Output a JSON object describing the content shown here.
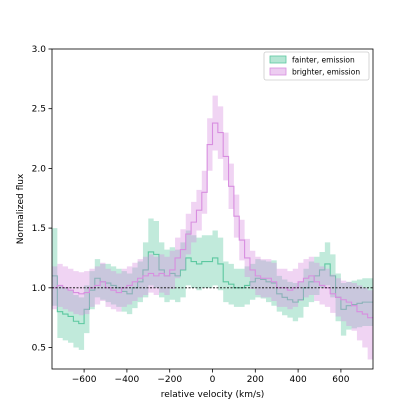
{
  "chart_data": {
    "type": "line",
    "title": "",
    "xlabel": "relative velocity (km/s)",
    "ylabel": "Normalized flux",
    "xlim": [
      -750,
      750
    ],
    "ylim": [
      0.32,
      3.0
    ],
    "xticks": [
      -600,
      -400,
      -200,
      0,
      200,
      400,
      600
    ],
    "xtick_labels": [
      "−600",
      "−400",
      "−200",
      "0",
      "200",
      "400",
      "600"
    ],
    "yticks": [
      0.5,
      1.0,
      1.5,
      2.0,
      2.5,
      3.0
    ],
    "ytick_labels": [
      "0.5",
      "1.0",
      "1.5",
      "2.0",
      "2.5",
      "3.0"
    ],
    "reference_line": 1.0,
    "grid": false,
    "legend_position": "top-right",
    "x": [
      -750,
      -725,
      -700,
      -675,
      -650,
      -625,
      -600,
      -575,
      -550,
      -525,
      -500,
      -475,
      -450,
      -425,
      -400,
      -375,
      -350,
      -325,
      -300,
      -275,
      -250,
      -225,
      -200,
      -175,
      -150,
      -125,
      -100,
      -75,
      -50,
      -25,
      0,
      25,
      50,
      75,
      100,
      125,
      150,
      175,
      200,
      225,
      250,
      275,
      300,
      325,
      350,
      375,
      400,
      425,
      450,
      475,
      500,
      525,
      550,
      575,
      600,
      625,
      650,
      675,
      700,
      725
    ],
    "series": [
      {
        "name": "fainter, emission",
        "color": "#5cc8a0",
        "values": [
          1.1,
          0.8,
          0.78,
          0.76,
          0.72,
          0.7,
          0.82,
          0.98,
          1.08,
          1.05,
          1.04,
          1.02,
          1.0,
          0.97,
          0.95,
          1.0,
          1.05,
          1.15,
          1.3,
          1.28,
          1.15,
          1.1,
          1.12,
          1.1,
          1.15,
          1.25,
          1.22,
          1.2,
          1.22,
          1.22,
          1.25,
          1.2,
          1.05,
          1.03,
          1.0,
          1.0,
          1.02,
          1.05,
          1.08,
          1.07,
          1.05,
          1.04,
          0.95,
          0.92,
          0.9,
          0.88,
          0.9,
          1.0,
          1.05,
          1.1,
          1.15,
          1.2,
          1.1,
          0.92,
          0.82,
          0.85,
          0.86,
          0.87,
          0.88,
          0.88
        ],
        "lower": [
          0.85,
          0.58,
          0.56,
          0.54,
          0.5,
          0.48,
          0.62,
          0.82,
          0.92,
          0.9,
          0.88,
          0.86,
          0.84,
          0.8,
          0.78,
          0.83,
          0.88,
          0.92,
          1.02,
          1.0,
          0.92,
          0.88,
          0.9,
          0.88,
          0.92,
          1.02,
          1.0,
          0.98,
          1.0,
          1.0,
          1.02,
          0.98,
          0.88,
          0.86,
          0.84,
          0.84,
          0.86,
          0.9,
          0.92,
          0.91,
          0.88,
          0.85,
          0.8,
          0.77,
          0.75,
          0.72,
          0.75,
          0.84,
          0.88,
          0.94,
          1.0,
          1.02,
          0.92,
          0.72,
          0.6,
          0.65,
          0.66,
          0.67,
          0.68,
          0.68
        ],
        "upper": [
          1.5,
          1.02,
          1.0,
          0.98,
          0.94,
          0.92,
          1.02,
          1.14,
          1.24,
          1.2,
          1.2,
          1.18,
          1.16,
          1.14,
          1.12,
          1.17,
          1.22,
          1.38,
          1.58,
          1.56,
          1.38,
          1.32,
          1.34,
          1.32,
          1.38,
          1.48,
          1.44,
          1.42,
          1.44,
          1.44,
          1.48,
          1.42,
          1.22,
          1.2,
          1.16,
          1.16,
          1.18,
          1.2,
          1.24,
          1.23,
          1.22,
          1.23,
          1.1,
          1.07,
          1.05,
          1.04,
          1.05,
          1.16,
          1.22,
          1.26,
          1.3,
          1.38,
          1.28,
          1.12,
          1.04,
          1.05,
          1.06,
          1.07,
          1.08,
          1.08
        ]
      },
      {
        "name": "brighter, emission",
        "color": "#d88ee0",
        "values": [
          1.0,
          1.02,
          1.0,
          0.98,
          0.96,
          0.95,
          0.96,
          1.0,
          1.02,
          1.05,
          1.0,
          0.98,
          0.96,
          1.0,
          1.02,
          1.05,
          1.08,
          1.1,
          1.12,
          1.1,
          1.12,
          1.1,
          1.15,
          1.25,
          1.32,
          1.45,
          1.55,
          1.65,
          1.8,
          2.2,
          2.38,
          2.3,
          2.1,
          1.85,
          1.6,
          1.4,
          1.25,
          1.15,
          1.1,
          1.08,
          1.08,
          1.05,
          1.0,
          1.0,
          0.98,
          1.0,
          1.05,
          1.08,
          1.1,
          1.05,
          1.02,
          1.0,
          0.95,
          0.92,
          0.9,
          0.88,
          0.85,
          0.8,
          0.78,
          0.75
        ],
        "lower": [
          0.82,
          0.84,
          0.82,
          0.8,
          0.78,
          0.77,
          0.78,
          0.84,
          0.86,
          0.89,
          0.84,
          0.82,
          0.8,
          0.84,
          0.86,
          0.89,
          0.92,
          0.94,
          0.96,
          0.94,
          0.96,
          0.94,
          0.99,
          1.08,
          1.15,
          1.28,
          1.38,
          1.48,
          1.62,
          1.98,
          2.15,
          2.08,
          1.9,
          1.66,
          1.42,
          1.23,
          1.09,
          0.99,
          0.94,
          0.92,
          0.92,
          0.89,
          0.84,
          0.84,
          0.82,
          0.84,
          0.89,
          0.92,
          0.94,
          0.89,
          0.86,
          0.84,
          0.79,
          0.76,
          0.72,
          0.68,
          0.64,
          0.56,
          0.5,
          0.4
        ],
        "upper": [
          1.18,
          1.2,
          1.18,
          1.16,
          1.14,
          1.13,
          1.14,
          1.16,
          1.18,
          1.21,
          1.16,
          1.14,
          1.12,
          1.16,
          1.18,
          1.21,
          1.24,
          1.26,
          1.28,
          1.26,
          1.28,
          1.26,
          1.31,
          1.42,
          1.49,
          1.62,
          1.72,
          1.82,
          1.98,
          2.42,
          2.61,
          2.52,
          2.3,
          2.04,
          1.78,
          1.57,
          1.41,
          1.31,
          1.26,
          1.24,
          1.24,
          1.21,
          1.16,
          1.16,
          1.14,
          1.16,
          1.21,
          1.24,
          1.26,
          1.21,
          1.18,
          1.16,
          1.11,
          1.08,
          1.06,
          1.05,
          1.04,
          1.02,
          1.0,
          0.98
        ]
      }
    ]
  }
}
